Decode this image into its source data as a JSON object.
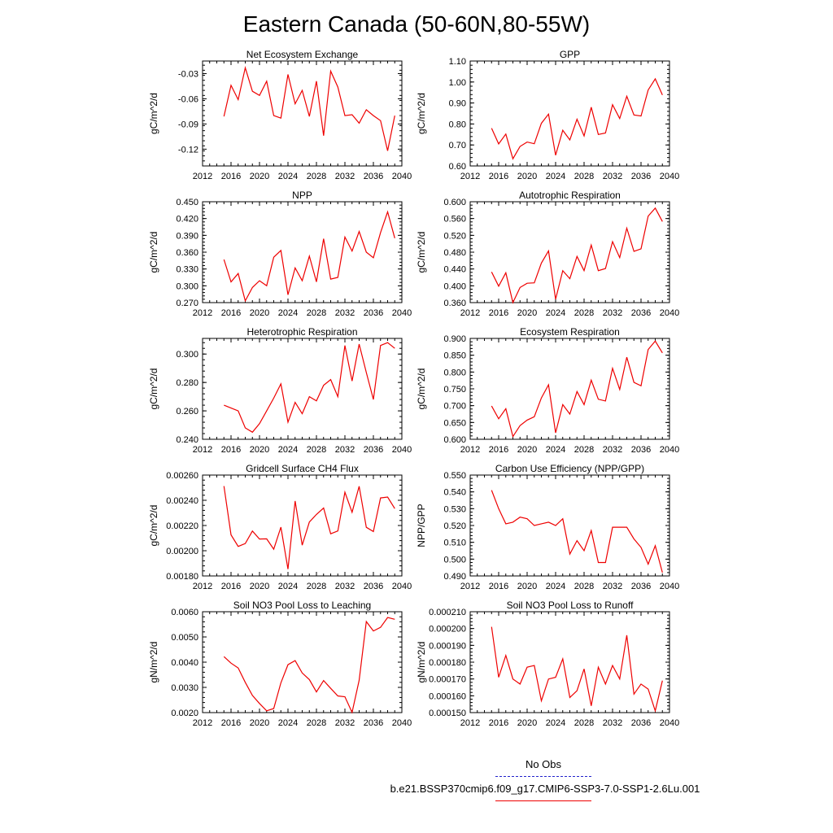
{
  "page_title": "Eastern Canada (50-60N,80-55W)",
  "legend": {
    "obs_label": "No Obs",
    "obs_color": "#2222cc",
    "run_label": "b.e21.BSSP370cmip6.f09_g17.CMIP6-SSP3-7.0-SSP1-2.6Lu.001",
    "run_color": "#ee0000"
  },
  "chart_data": [
    {
      "type": "line",
      "title": "Net Ecosystem Exchange",
      "ylabel": "gC/m^2/d",
      "xlim": [
        2012,
        2040
      ],
      "xticks": [
        "2012",
        "2016",
        "2020",
        "2024",
        "2028",
        "2032",
        "2036",
        "2040"
      ],
      "ylim": [
        -0.14,
        -0.015
      ],
      "yticks": [
        "-0.03",
        "-0.06",
        "-0.09",
        "-0.12"
      ],
      "series": [
        {
          "color": "#ee0000",
          "x": [
            2015,
            2016,
            2017,
            2018,
            2019,
            2020,
            2021,
            2022,
            2023,
            2024,
            2025,
            2026,
            2027,
            2028,
            2029,
            2030,
            2031,
            2032,
            2033,
            2034,
            2035,
            2036,
            2037,
            2038,
            2039
          ],
          "values": [
            -0.081,
            -0.044,
            -0.061,
            -0.023,
            -0.051,
            -0.056,
            -0.039,
            -0.08,
            -0.083,
            -0.031,
            -0.066,
            -0.05,
            -0.081,
            -0.039,
            -0.104,
            -0.027,
            -0.046,
            -0.08,
            -0.079,
            -0.089,
            -0.073,
            -0.08,
            -0.086,
            -0.122,
            -0.08
          ]
        }
      ]
    },
    {
      "type": "line",
      "title": "GPP",
      "ylabel": "gC/m^2/d",
      "xlim": [
        2012,
        2040
      ],
      "xticks": [
        "2012",
        "2016",
        "2020",
        "2024",
        "2028",
        "2032",
        "2036",
        "2040"
      ],
      "ylim": [
        0.6,
        1.1
      ],
      "yticks": [
        "1.10",
        "1.00",
        "0.90",
        "0.80",
        "0.70",
        "0.60"
      ],
      "extra_minor_labels": [
        "1.10"
      ],
      "series": [
        {
          "color": "#ee0000",
          "x": [
            2015,
            2016,
            2017,
            2018,
            2019,
            2020,
            2021,
            2022,
            2023,
            2024,
            2025,
            2026,
            2027,
            2028,
            2029,
            2030,
            2031,
            2032,
            2033,
            2034,
            2035,
            2036,
            2037,
            2038,
            2039
          ],
          "values": [
            0.78,
            0.705,
            0.752,
            0.634,
            0.693,
            0.714,
            0.706,
            0.803,
            0.847,
            0.651,
            0.77,
            0.724,
            0.823,
            0.743,
            0.88,
            0.75,
            0.757,
            0.892,
            0.826,
            0.932,
            0.843,
            0.838,
            0.962,
            1.015,
            0.938
          ]
        }
      ]
    },
    {
      "type": "line",
      "title": "NPP",
      "ylabel": "gC/m^2/d",
      "xlim": [
        2012,
        2040
      ],
      "xticks": [
        "2012",
        "2016",
        "2020",
        "2024",
        "2028",
        "2032",
        "2036",
        "2040"
      ],
      "ylim": [
        0.27,
        0.45
      ],
      "yticks": [
        "0.450",
        "0.420",
        "0.390",
        "0.360",
        "0.330",
        "0.300",
        "0.270"
      ],
      "series": [
        {
          "color": "#ee0000",
          "x": [
            2015,
            2016,
            2017,
            2018,
            2019,
            2020,
            2021,
            2022,
            2023,
            2024,
            2025,
            2026,
            2027,
            2028,
            2029,
            2030,
            2031,
            2032,
            2033,
            2034,
            2035,
            2036,
            2037,
            2038,
            2039
          ],
          "values": [
            0.347,
            0.307,
            0.322,
            0.273,
            0.297,
            0.309,
            0.3,
            0.351,
            0.363,
            0.284,
            0.332,
            0.309,
            0.353,
            0.307,
            0.384,
            0.312,
            0.315,
            0.387,
            0.362,
            0.397,
            0.36,
            0.35,
            0.395,
            0.432,
            0.385
          ]
        }
      ]
    },
    {
      "type": "line",
      "title": "Autotrophic Respiration",
      "ylabel": "gC/m^2/d",
      "xlim": [
        2012,
        2040
      ],
      "xticks": [
        "2012",
        "2016",
        "2020",
        "2024",
        "2028",
        "2032",
        "2036",
        "2040"
      ],
      "ylim": [
        0.36,
        0.6
      ],
      "yticks": [
        "0.600",
        "0.560",
        "0.520",
        "0.480",
        "0.440",
        "0.400",
        "0.360"
      ],
      "series": [
        {
          "color": "#ee0000",
          "x": [
            2015,
            2016,
            2017,
            2018,
            2019,
            2020,
            2021,
            2022,
            2023,
            2024,
            2025,
            2026,
            2027,
            2028,
            2029,
            2030,
            2031,
            2032,
            2033,
            2034,
            2035,
            2036,
            2037,
            2038,
            2039
          ],
          "values": [
            0.433,
            0.399,
            0.431,
            0.36,
            0.396,
            0.406,
            0.407,
            0.454,
            0.483,
            0.368,
            0.436,
            0.417,
            0.47,
            0.436,
            0.497,
            0.436,
            0.441,
            0.505,
            0.467,
            0.537,
            0.482,
            0.488,
            0.566,
            0.585,
            0.553
          ]
        }
      ]
    },
    {
      "type": "line",
      "title": "Heterotrophic Respiration",
      "ylabel": "gC/m^2/d",
      "xlim": [
        2012,
        2040
      ],
      "xticks": [
        "2012",
        "2016",
        "2020",
        "2024",
        "2028",
        "2032",
        "2036",
        "2040"
      ],
      "ylim": [
        0.24,
        0.311
      ],
      "yticks": [
        "0.300",
        "0.280",
        "0.260",
        "0.240"
      ],
      "series": [
        {
          "color": "#ee0000",
          "x": [
            2015,
            2016,
            2017,
            2018,
            2019,
            2020,
            2021,
            2022,
            2023,
            2024,
            2025,
            2026,
            2027,
            2028,
            2029,
            2030,
            2031,
            2032,
            2033,
            2034,
            2035,
            2036,
            2037,
            2038,
            2039
          ],
          "values": [
            0.264,
            0.262,
            0.26,
            0.248,
            0.245,
            0.251,
            0.26,
            0.269,
            0.279,
            0.252,
            0.266,
            0.258,
            0.27,
            0.267,
            0.278,
            0.282,
            0.27,
            0.306,
            0.281,
            0.307,
            0.287,
            0.268,
            0.306,
            0.308,
            0.304
          ]
        }
      ]
    },
    {
      "type": "line",
      "title": "Ecosystem Respiration",
      "ylabel": "gC/m^2/d",
      "xlim": [
        2012,
        2040
      ],
      "xticks": [
        "2012",
        "2016",
        "2020",
        "2024",
        "2028",
        "2032",
        "2036",
        "2040"
      ],
      "ylim": [
        0.6,
        0.9
      ],
      "yticks": [
        "0.900",
        "0.850",
        "0.800",
        "0.750",
        "0.700",
        "0.650",
        "0.600"
      ],
      "series": [
        {
          "color": "#ee0000",
          "x": [
            2015,
            2016,
            2017,
            2018,
            2019,
            2020,
            2021,
            2022,
            2023,
            2024,
            2025,
            2026,
            2027,
            2028,
            2029,
            2030,
            2031,
            2032,
            2033,
            2034,
            2035,
            2036,
            2037,
            2038,
            2039
          ],
          "values": [
            0.699,
            0.661,
            0.691,
            0.608,
            0.641,
            0.657,
            0.667,
            0.723,
            0.762,
            0.619,
            0.703,
            0.675,
            0.742,
            0.703,
            0.776,
            0.719,
            0.714,
            0.811,
            0.748,
            0.844,
            0.769,
            0.759,
            0.867,
            0.892,
            0.857
          ]
        }
      ]
    },
    {
      "type": "line",
      "title": "Gridcell Surface CH4 Flux",
      "ylabel": "gC/m^2/d",
      "xlim": [
        2012,
        2040
      ],
      "xticks": [
        "2012",
        "2016",
        "2020",
        "2024",
        "2028",
        "2032",
        "2036",
        "2040"
      ],
      "ylim": [
        0.0018,
        0.0026
      ],
      "yticks": [
        "0.00260",
        "0.00240",
        "0.00220",
        "0.00200",
        "0.00180"
      ],
      "series": [
        {
          "color": "#ee0000",
          "x": [
            2015,
            2016,
            2017,
            2018,
            2019,
            2020,
            2021,
            2022,
            2023,
            2024,
            2025,
            2026,
            2027,
            2028,
            2029,
            2030,
            2031,
            2032,
            2033,
            2034,
            2035,
            2036,
            2037,
            2038,
            2039
          ],
          "values": [
            0.002512,
            0.002126,
            0.002034,
            0.002057,
            0.002156,
            0.002093,
            0.002094,
            0.002012,
            0.002187,
            0.001854,
            0.002394,
            0.002044,
            0.002228,
            0.002288,
            0.002339,
            0.002134,
            0.002157,
            0.002464,
            0.002305,
            0.002511,
            0.002186,
            0.002152,
            0.002419,
            0.002426,
            0.002334
          ]
        }
      ]
    },
    {
      "type": "line",
      "title": "Carbon Use Efficiency (NPP/GPP)",
      "ylabel": "NPP/GPP",
      "xlim": [
        2012,
        2040
      ],
      "xticks": [
        "2012",
        "2016",
        "2020",
        "2024",
        "2028",
        "2032",
        "2036",
        "2040"
      ],
      "ylim": [
        0.49,
        0.55
      ],
      "yticks": [
        "0.550",
        "0.540",
        "0.530",
        "0.520",
        "0.510",
        "0.500",
        "0.490"
      ],
      "series": [
        {
          "color": "#ee0000",
          "x": [
            2015,
            2016,
            2017,
            2018,
            2019,
            2020,
            2021,
            2022,
            2023,
            2024,
            2025,
            2026,
            2027,
            2028,
            2029,
            2030,
            2031,
            2032,
            2033,
            2034,
            2035,
            2036,
            2037,
            2038,
            2039
          ],
          "values": [
            0.541,
            0.53,
            0.521,
            0.522,
            0.525,
            0.524,
            0.52,
            0.521,
            0.522,
            0.52,
            0.524,
            0.503,
            0.511,
            0.505,
            0.517,
            0.498,
            0.498,
            0.519,
            0.519,
            0.519,
            0.512,
            0.507,
            0.497,
            0.508,
            0.492
          ]
        }
      ]
    },
    {
      "type": "line",
      "title": "Soil NO3 Pool Loss to Leaching",
      "ylabel": "gN/m^2/d",
      "xlim": [
        2012,
        2040
      ],
      "xticks": [
        "2012",
        "2016",
        "2020",
        "2024",
        "2028",
        "2032",
        "2036",
        "2040"
      ],
      "ylim": [
        0.002,
        0.006
      ],
      "yticks": [
        "0.0060",
        "0.0050",
        "0.0040",
        "0.0030",
        "0.0020"
      ],
      "series": [
        {
          "color": "#ee0000",
          "x": [
            2015,
            2016,
            2017,
            2018,
            2019,
            2020,
            2021,
            2022,
            2023,
            2024,
            2025,
            2026,
            2027,
            2028,
            2029,
            2030,
            2031,
            2032,
            2033,
            2034,
            2035,
            2036,
            2037,
            2038,
            2039
          ],
          "values": [
            0.00422,
            0.00396,
            0.00377,
            0.0032,
            0.00268,
            0.00236,
            0.00207,
            0.00216,
            0.00318,
            0.0039,
            0.00406,
            0.00357,
            0.00331,
            0.00282,
            0.00327,
            0.00296,
            0.00266,
            0.00263,
            0.00201,
            0.00328,
            0.00561,
            0.00524,
            0.00538,
            0.00577,
            0.0057
          ]
        }
      ]
    },
    {
      "type": "line",
      "title": "Soil NO3 Pool Loss to Runoff",
      "ylabel": "gN/m^2/d",
      "xlim": [
        2012,
        2040
      ],
      "xticks": [
        "2012",
        "2016",
        "2020",
        "2024",
        "2028",
        "2032",
        "2036",
        "2040"
      ],
      "ylim": [
        0.00015,
        0.00021
      ],
      "yticks": [
        "0.000210",
        "0.000200",
        "0.000190",
        "0.000180",
        "0.000170",
        "0.000160",
        "0.000150"
      ],
      "series": [
        {
          "color": "#ee0000",
          "x": [
            2015,
            2016,
            2017,
            2018,
            2019,
            2020,
            2021,
            2022,
            2023,
            2024,
            2025,
            2026,
            2027,
            2028,
            2029,
            2030,
            2031,
            2032,
            2033,
            2034,
            2035,
            2036,
            2037,
            2038,
            2039
          ],
          "values": [
            0.000201,
            0.000171,
            0.000184,
            0.00017,
            0.000167,
            0.000177,
            0.000178,
            0.000157,
            0.00017,
            0.000171,
            0.000182,
            0.000159,
            0.000163,
            0.000176,
            0.000154,
            0.000177,
            0.000167,
            0.000178,
            0.00017,
            0.000196,
            0.000161,
            0.000167,
            0.000164,
            0.000151,
            0.000169
          ]
        }
      ]
    }
  ]
}
